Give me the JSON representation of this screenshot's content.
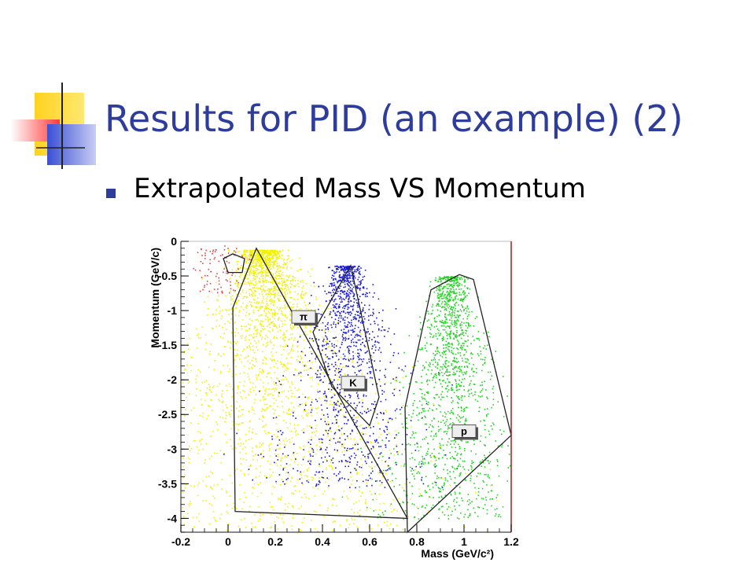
{
  "slide": {
    "title": "Results for PID (an example) (2)",
    "bullet": "Extrapolated Mass VS Momentum"
  },
  "colors": {
    "title": "#2e3d9c",
    "deco_yellow": "#ffd21f",
    "deco_red": "#ff4c4c",
    "deco_blue": "#3a4fd4",
    "pion": "#f2f200",
    "kaon": "#1a1ad9",
    "proton": "#22d422",
    "frame_right": "#b01818"
  },
  "chart_data": {
    "type": "scatter",
    "xlabel": "Mass (GeV/c²)",
    "ylabel": "Momentum (GeV/c)",
    "xlim": [
      -0.2,
      1.2
    ],
    "ylim": [
      -4.2,
      0
    ],
    "xticks": [
      "-0.2",
      "0",
      "0.2",
      "0.4",
      "0.6",
      "0.8",
      "1",
      "1.2"
    ],
    "yticks": [
      "0",
      "-0.5",
      "-1",
      "-1.5",
      "-2",
      "-2.5",
      "-3",
      "-3.5",
      "-4"
    ],
    "series": [
      {
        "name": "π",
        "color": "#f2f200",
        "peak_mass": 0.14
      },
      {
        "name": "K",
        "color": "#1a1ad9",
        "peak_mass": 0.5
      },
      {
        "name": "p",
        "color": "#22d422",
        "peak_mass": 0.94
      }
    ],
    "cut_regions": [
      {
        "label": "π",
        "label_at": [
          0.27,
          -1.0
        ],
        "points": [
          [
            0.02,
            -0.96
          ],
          [
            0.12,
            -0.1
          ],
          [
            0.76,
            -4.0
          ],
          [
            0.03,
            -3.9
          ]
        ]
      },
      {
        "label": "K",
        "label_at": [
          0.48,
          -1.95
        ],
        "points": [
          [
            0.52,
            -0.35
          ],
          [
            0.64,
            -2.25
          ],
          [
            0.6,
            -2.66
          ],
          [
            0.44,
            -2.1
          ],
          [
            0.36,
            -1.31
          ]
        ]
      },
      {
        "label": "p",
        "label_at": [
          0.95,
          -2.65
        ],
        "points": [
          [
            0.76,
            -4.2
          ],
          [
            0.75,
            -2.4
          ],
          [
            0.86,
            -0.7
          ],
          [
            0.98,
            -0.48
          ],
          [
            1.04,
            -0.55
          ],
          [
            1.2,
            -2.8
          ]
        ]
      },
      {
        "label": "",
        "label_at": null,
        "points": [
          [
            -0.02,
            -0.25
          ],
          [
            0.02,
            -0.18
          ],
          [
            0.07,
            -0.25
          ],
          [
            0.06,
            -0.45
          ],
          [
            0.0,
            -0.45
          ]
        ]
      }
    ]
  }
}
